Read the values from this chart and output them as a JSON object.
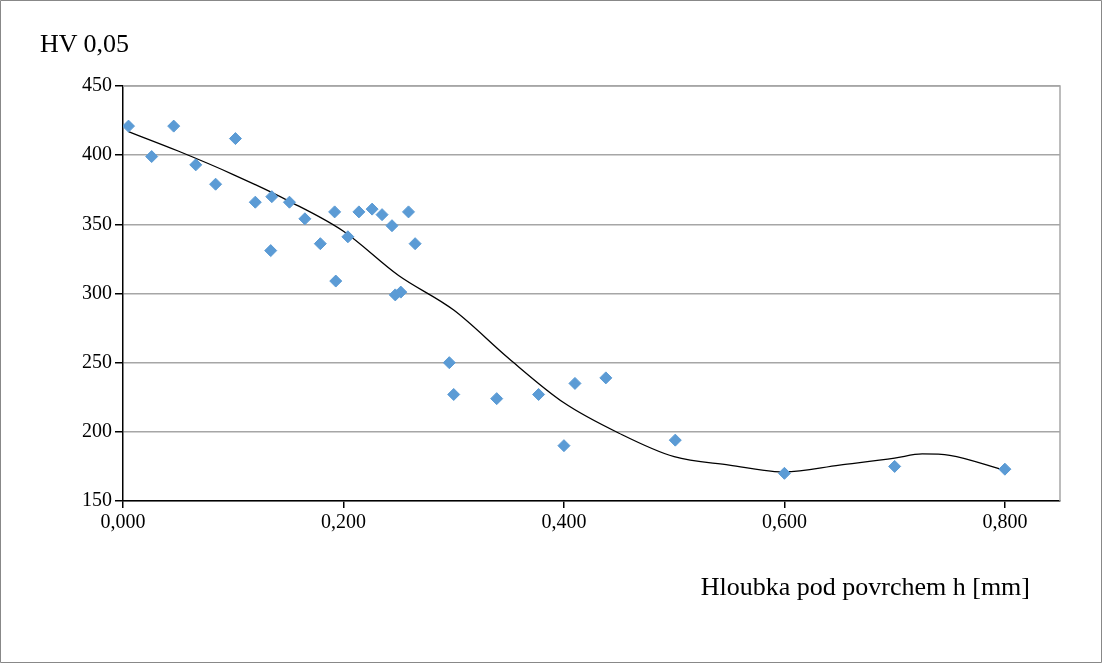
{
  "chart_data": {
    "type": "scatter",
    "xlabel": "Hloubka pod povrchem h [mm]",
    "ylabel": "HV 0,05",
    "xlim": [
      0,
      0.85
    ],
    "xticks": [
      {
        "value": 0,
        "label": "0,000"
      },
      {
        "value": 0.2,
        "label": "0,200"
      },
      {
        "value": 0.4,
        "label": "0,400"
      },
      {
        "value": 0.6,
        "label": "0,600"
      },
      {
        "value": 0.8,
        "label": "0,800"
      }
    ],
    "ylim": [
      150,
      450
    ],
    "yticks": [
      150,
      200,
      250,
      300,
      350,
      400,
      450
    ],
    "grid": "y",
    "legend": false,
    "marker": "diamond",
    "series": [
      {
        "type": "scatter",
        "color": "#5b9bd5",
        "x": [
          0.005,
          0.026,
          0.046,
          0.066,
          0.084,
          0.102,
          0.12,
          0.134,
          0.135,
          0.151,
          0.165,
          0.179,
          0.192,
          0.193,
          0.204,
          0.214,
          0.226,
          0.235,
          0.244,
          0.247,
          0.252,
          0.259,
          0.265,
          0.296,
          0.3,
          0.339,
          0.377,
          0.4,
          0.41,
          0.438,
          0.501,
          0.6,
          0.7,
          0.8
        ],
        "values": [
          421,
          399,
          421,
          393,
          379,
          412,
          366,
          331,
          370,
          366,
          354,
          336,
          359,
          309,
          341,
          359,
          361,
          357,
          349,
          299,
          301,
          359,
          336,
          250,
          227,
          224,
          227,
          190,
          235,
          239,
          194,
          170,
          175,
          173
        ]
      },
      {
        "type": "line",
        "color": "#000000",
        "marker": "none",
        "x": [
          0.005,
          0.05,
          0.1,
          0.15,
          0.2,
          0.25,
          0.3,
          0.35,
          0.4,
          0.45,
          0.5,
          0.55,
          0.6,
          0.65,
          0.7,
          0.725,
          0.75,
          0.8
        ],
        "values": [
          417,
          403,
          386,
          367,
          345,
          313,
          288,
          253,
          221,
          199,
          182,
          176,
          171,
          176,
          181,
          184,
          183,
          172
        ]
      }
    ]
  }
}
